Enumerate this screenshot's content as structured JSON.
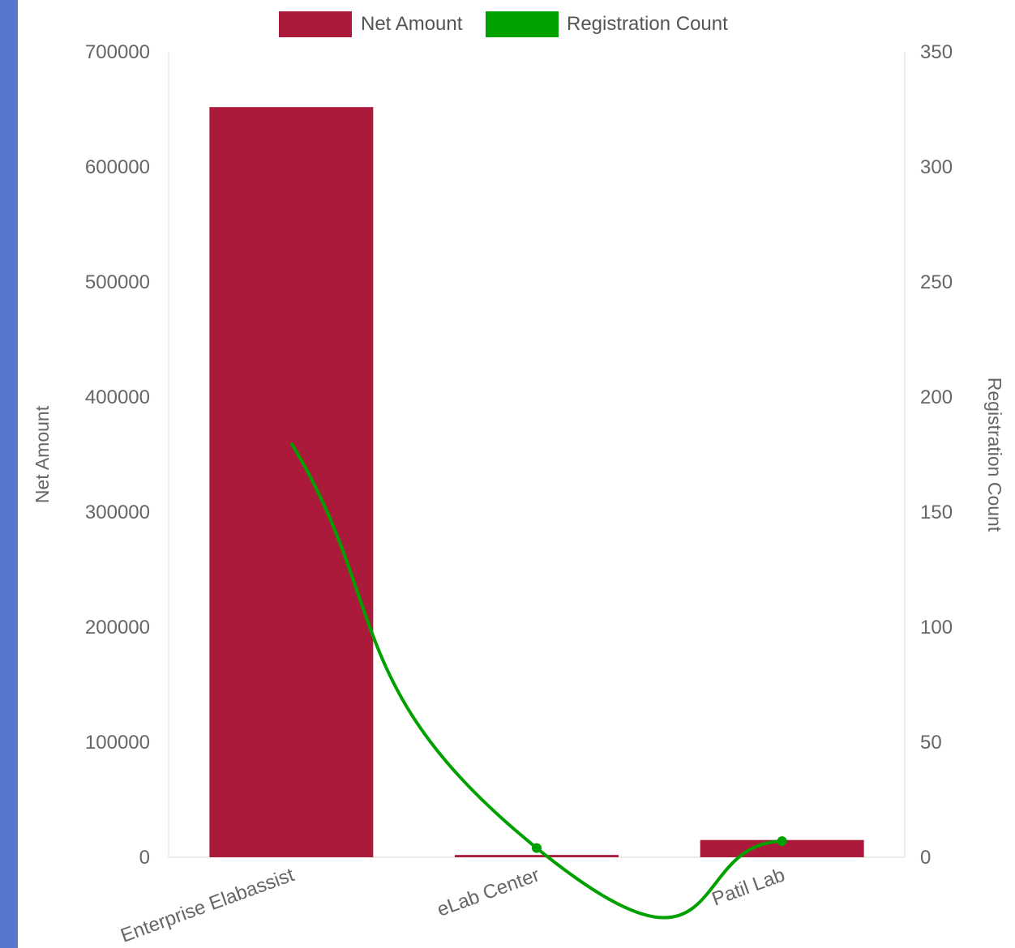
{
  "colors": {
    "frame_strip": "#5577cc",
    "bar": "#ab1a3b",
    "line": "#00a000",
    "grid": "#e6e6e6",
    "text": "#666666"
  },
  "chart_data": {
    "type": "bar",
    "combo": "bar + line (dual y-axis)",
    "categories": [
      "Enterprise Elabassist",
      "eLab Center",
      "Patil Lab"
    ],
    "series": [
      {
        "name": "Net Amount",
        "type": "bar",
        "axis": "left",
        "values": [
          652000,
          2000,
          15000
        ]
      },
      {
        "name": "Registration Count",
        "type": "line",
        "axis": "right",
        "smooth": true,
        "values": [
          180,
          4,
          7
        ]
      }
    ],
    "y_left": {
      "label": "Net Amount",
      "ylim": [
        0,
        700000
      ],
      "ticks": [
        0,
        100000,
        200000,
        300000,
        400000,
        500000,
        600000,
        700000
      ]
    },
    "y_right": {
      "label": "Registration Count",
      "ylim": [
        0,
        350
      ],
      "ticks": [
        0,
        50,
        100,
        150,
        200,
        250,
        300,
        350
      ]
    },
    "legend": {
      "position": "top",
      "entries": [
        "Net Amount",
        "Registration Count"
      ]
    },
    "grid": false
  }
}
